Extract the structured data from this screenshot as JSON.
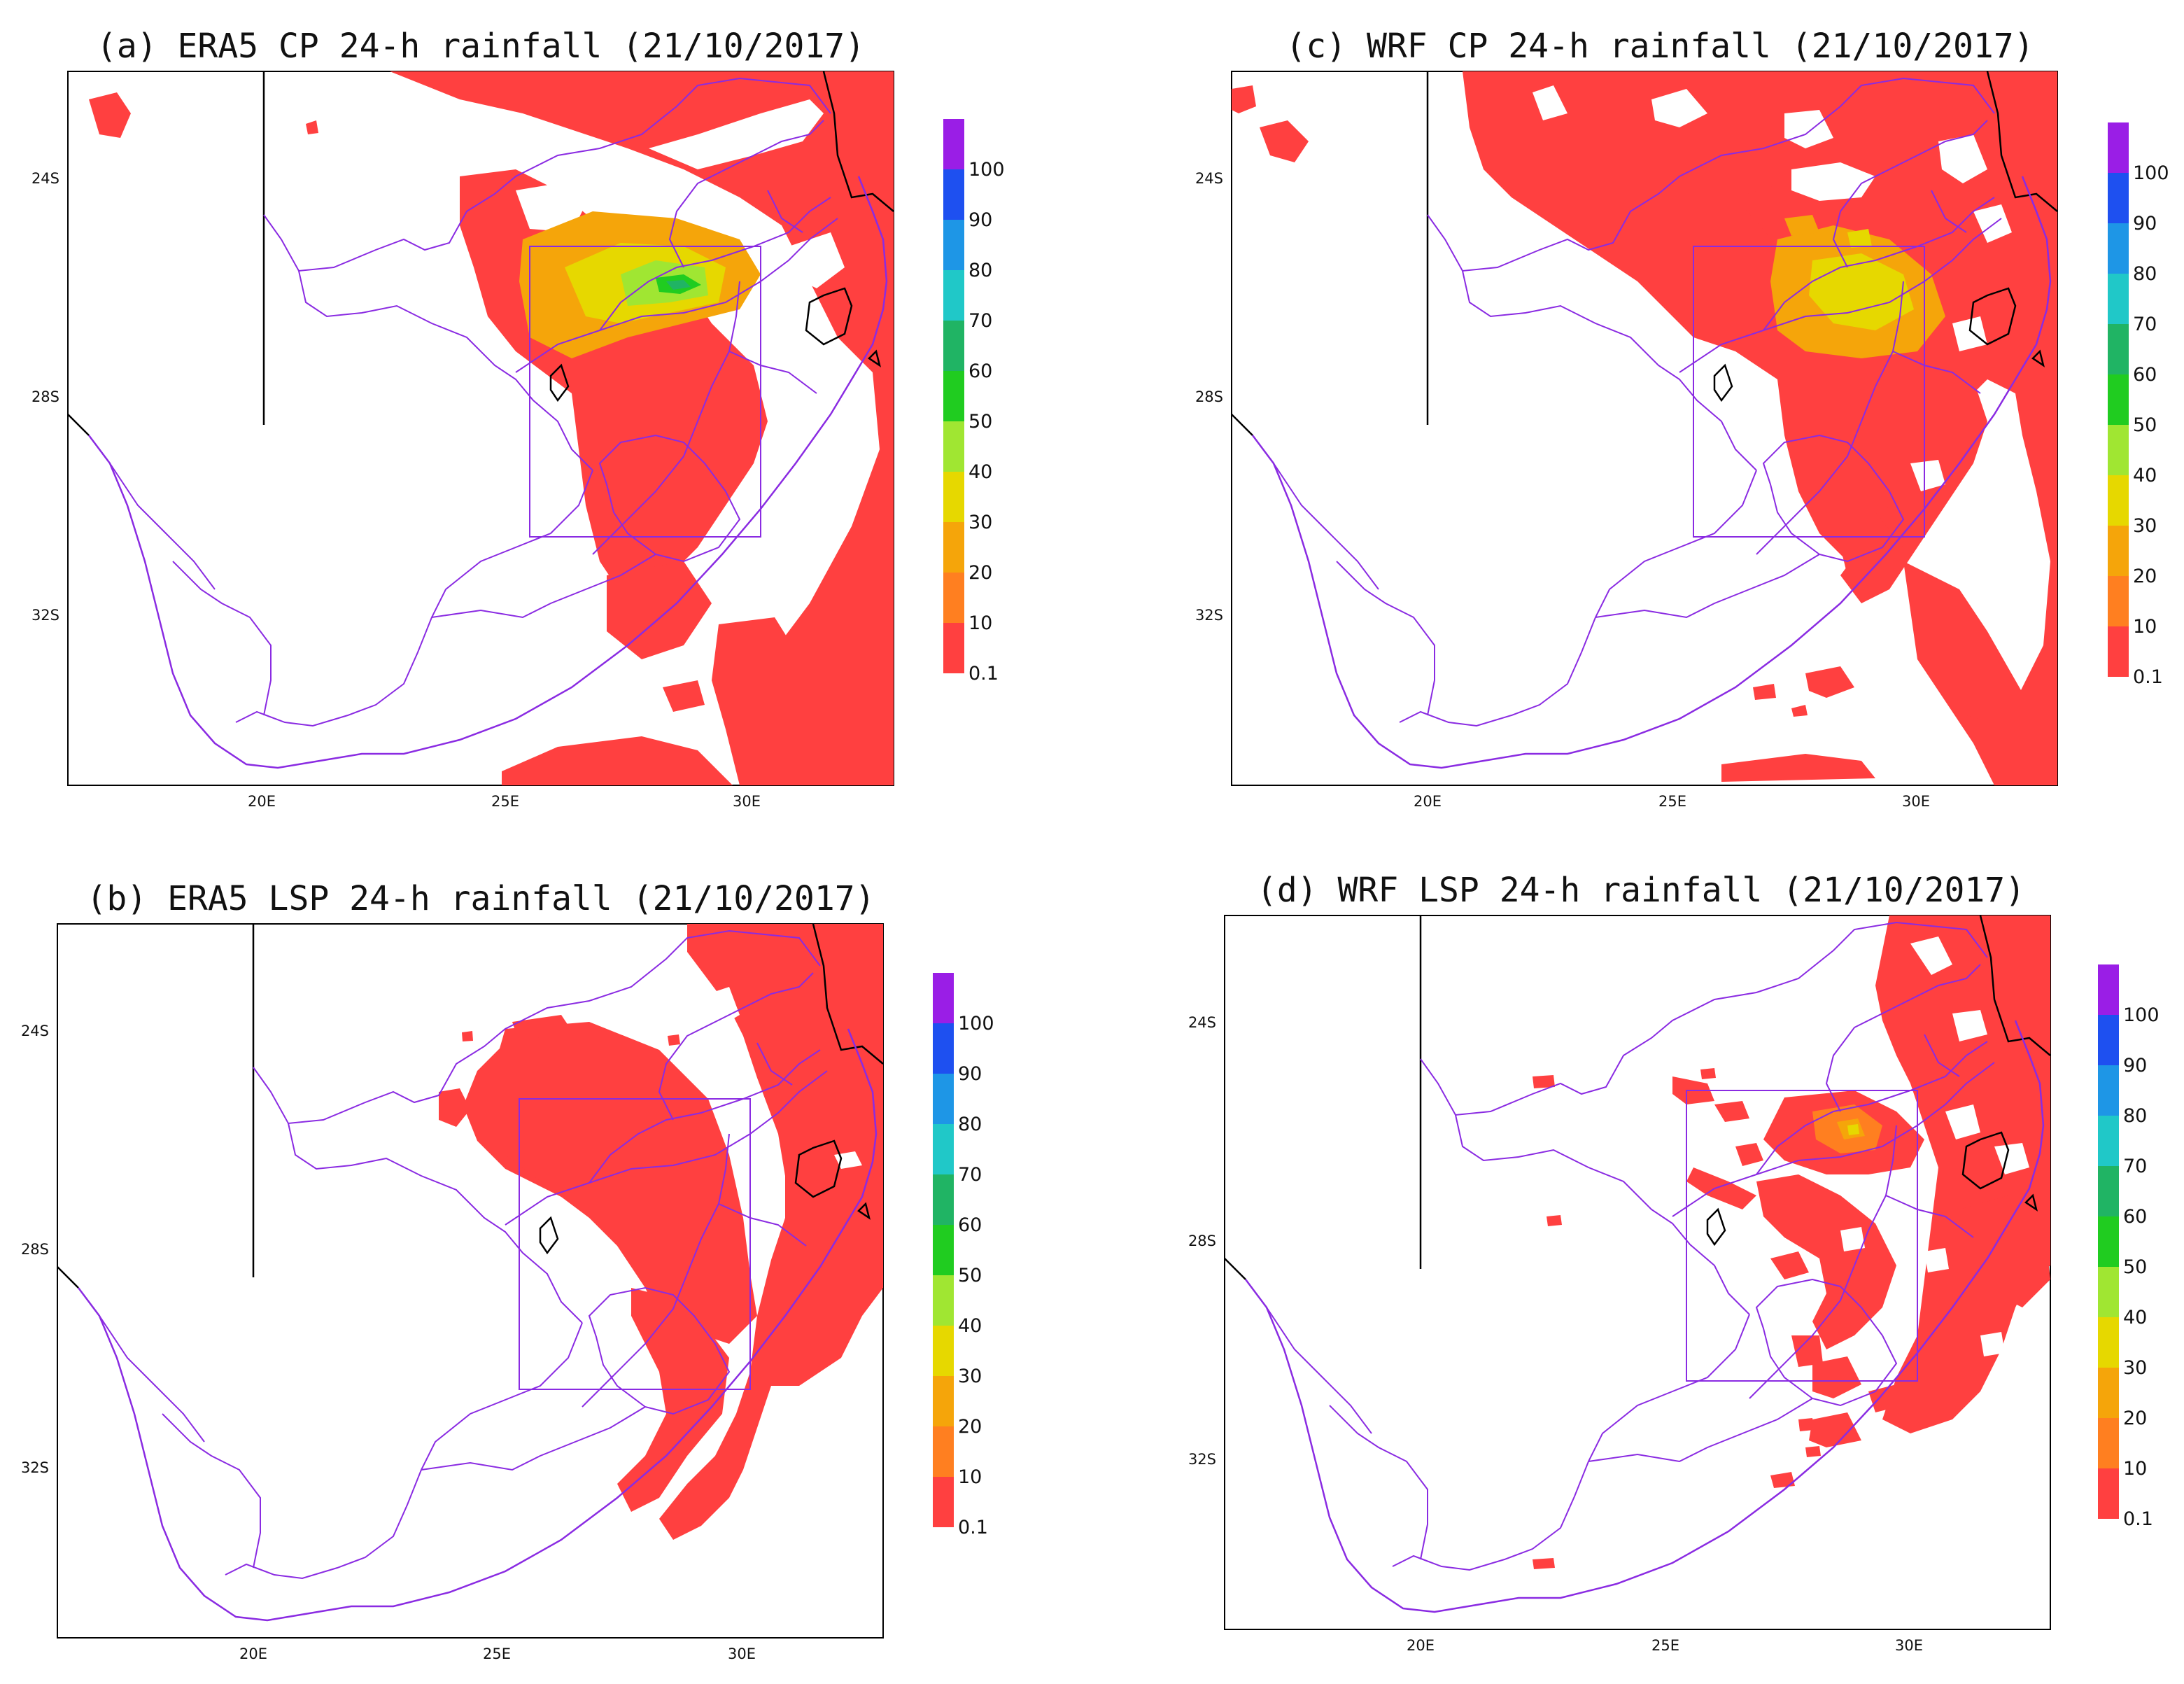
{
  "panels": [
    {
      "id": "a",
      "title": "(a) ERA5 CP 24-h rainfall (21/10/2017)"
    },
    {
      "id": "b",
      "title": "(b) ERA5 LSP 24-h rainfall (21/10/2017)"
    },
    {
      "id": "c",
      "title": "(c) WRF CP 24-h rainfall (21/10/2017)"
    },
    {
      "id": "d",
      "title": "(d) WRF LSP 24-h rainfall (21/10/2017)"
    }
  ],
  "lat_ticks": [
    "24S",
    "28S",
    "32S"
  ],
  "lon_ticks": [
    "20E",
    "25E",
    "30E"
  ],
  "colorbar": {
    "labels": [
      "0.1",
      "10",
      "20",
      "30",
      "40",
      "50",
      "60",
      "70",
      "80",
      "90",
      "100"
    ],
    "colors": [
      "#ff4040",
      "#ff7f20",
      "#f5a50a",
      "#e6d800",
      "#a0e632",
      "#20cc20",
      "#20b464",
      "#20c8c8",
      "#1e96e6",
      "#1e50f0",
      "#9a1ee6"
    ]
  },
  "colors": {
    "rain": "#ff4040",
    "boundary": "#8a2be2",
    "country": "#000000",
    "box": "#8a2be2"
  },
  "map_features": [
    "region box",
    "province boundaries",
    "country borders",
    "coastline"
  ]
}
